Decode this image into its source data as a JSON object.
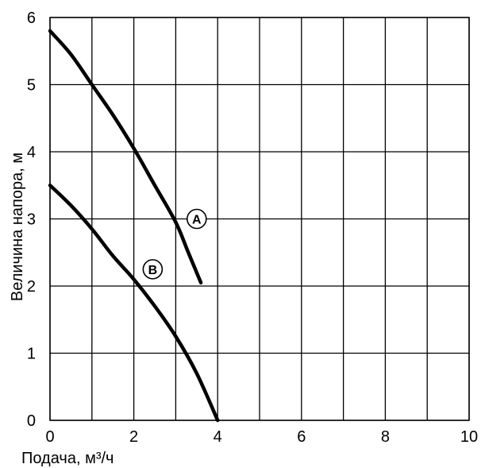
{
  "chart_data": {
    "type": "line",
    "xlabel": "Подача, м³/ч",
    "ylabel": "Величина напора, м",
    "xlim": [
      0,
      10
    ],
    "ylim": [
      0,
      6
    ],
    "xticks": [
      0,
      2,
      4,
      6,
      8,
      10
    ],
    "yticks": [
      0,
      1,
      2,
      3,
      4,
      5,
      6
    ],
    "grid": true,
    "series": [
      {
        "name": "A",
        "x": [
          0,
          0.5,
          1,
          1.5,
          2,
          2.5,
          3,
          3.3,
          3.6
        ],
        "y": [
          5.8,
          5.45,
          5.0,
          4.55,
          4.05,
          3.5,
          2.95,
          2.5,
          2.05
        ]
      },
      {
        "name": "B",
        "x": [
          0,
          0.5,
          1,
          1.5,
          2,
          2.5,
          3,
          3.5,
          4
        ],
        "y": [
          3.5,
          3.2,
          2.85,
          2.45,
          2.1,
          1.7,
          1.25,
          0.7,
          0
        ]
      }
    ],
    "annotations": [
      {
        "label": "A",
        "x": 3.5,
        "y": 3.0
      },
      {
        "label": "B",
        "x": 2.45,
        "y": 2.25
      }
    ]
  }
}
